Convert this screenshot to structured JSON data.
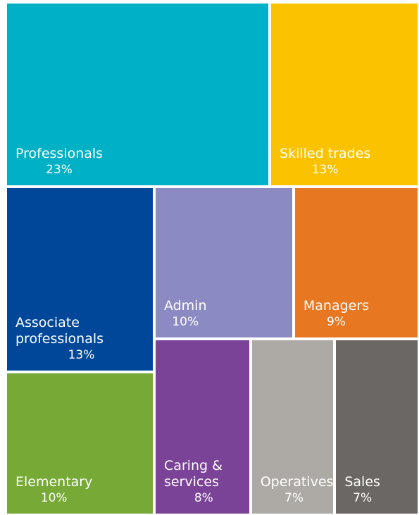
{
  "chart_data": {
    "type": "treemap",
    "categories": [
      "Professionals",
      "Skilled trades",
      "Associate professionals",
      "Admin",
      "Elementary",
      "Managers",
      "Caring & services",
      "Operatives",
      "Sales"
    ],
    "values": [
      23,
      13,
      13,
      10,
      10,
      9,
      8,
      7,
      7
    ],
    "value_labels": [
      "23%",
      "13%",
      "13%",
      "10%",
      "10%",
      "9%",
      "8%",
      "7%",
      "7%"
    ],
    "colors": [
      "#00b0c4",
      "#fbc200",
      "#00479a",
      "#8c8ac2",
      "#76a935",
      "#e87722",
      "#7b4397",
      "#adaaa6",
      "#6b6764"
    ]
  }
}
